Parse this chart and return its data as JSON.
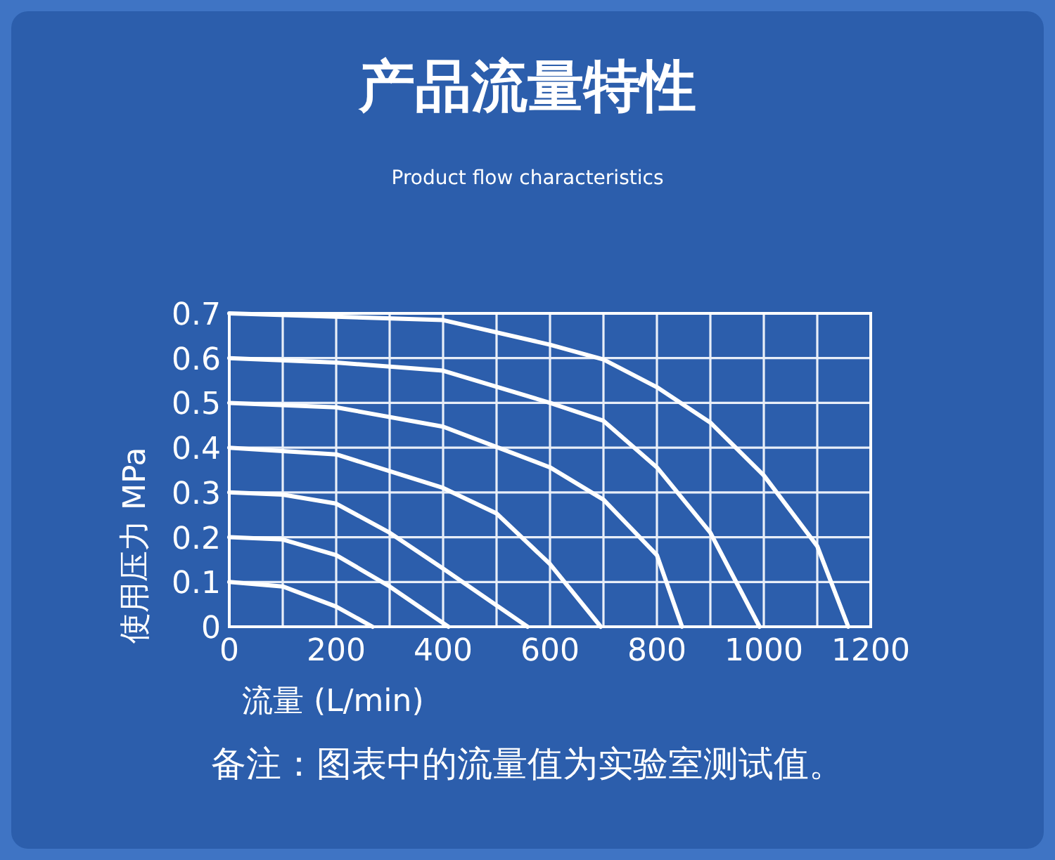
{
  "chart_data": {
    "type": "line",
    "title": "产品流量特性",
    "subtitle": "Product flow characteristics",
    "xlabel": "流量    (L/min)",
    "ylabel": "使用压力    MPa",
    "annotations": [
      "备注：图表中的流量值为实验室测试值。"
    ],
    "xlim": [
      0,
      1200
    ],
    "ylim": [
      0,
      0.7
    ],
    "xticks": [
      0,
      {
        "value": 100,
        "label": null
      },
      200,
      {
        "value": 300,
        "label": null
      },
      400,
      {
        "value": 500,
        "label": null
      },
      600,
      {
        "value": 700,
        "label": null
      },
      800,
      {
        "value": 900,
        "label": null
      },
      1000,
      {
        "value": 1100,
        "label": null
      },
      1200
    ],
    "yticks": [
      0,
      0.1,
      0.2,
      0.3,
      0.4,
      0.5,
      0.6,
      0.7
    ],
    "grid": true,
    "marker": "none",
    "line_style": "solid",
    "series": [
      {
        "color": "#ffffff",
        "x": [
          0,
          100,
          200,
          268
        ],
        "values": [
          0.1,
          0.09,
          0.045,
          0
        ]
      },
      {
        "color": "#ffffff",
        "x": [
          0,
          100,
          200,
          300,
          410
        ],
        "values": [
          0.2,
          0.195,
          0.16,
          0.09,
          0
        ]
      },
      {
        "color": "#ffffff",
        "x": [
          0,
          100,
          200,
          300,
          400,
          558
        ],
        "values": [
          0.3,
          0.295,
          0.275,
          0.21,
          0.13,
          0
        ]
      },
      {
        "color": "#ffffff",
        "x": [
          0,
          200,
          400,
          500,
          600,
          695
        ],
        "values": [
          0.4,
          0.385,
          0.31,
          0.253,
          0.14,
          0
        ]
      },
      {
        "color": "#ffffff",
        "x": [
          0,
          200,
          400,
          600,
          700,
          800,
          847
        ],
        "values": [
          0.5,
          0.49,
          0.447,
          0.356,
          0.284,
          0.16,
          0
        ]
      },
      {
        "color": "#ffffff",
        "x": [
          0,
          200,
          400,
          600,
          700,
          800,
          900,
          992
        ],
        "values": [
          0.6,
          0.59,
          0.572,
          0.5,
          0.46,
          0.356,
          0.21,
          0
        ]
      },
      {
        "color": "#ffffff",
        "x": [
          0,
          400,
          600,
          700,
          800,
          900,
          1000,
          1100,
          1158
        ],
        "values": [
          0.7,
          0.685,
          0.63,
          0.597,
          0.535,
          0.456,
          0.338,
          0.18,
          0
        ]
      }
    ]
  }
}
